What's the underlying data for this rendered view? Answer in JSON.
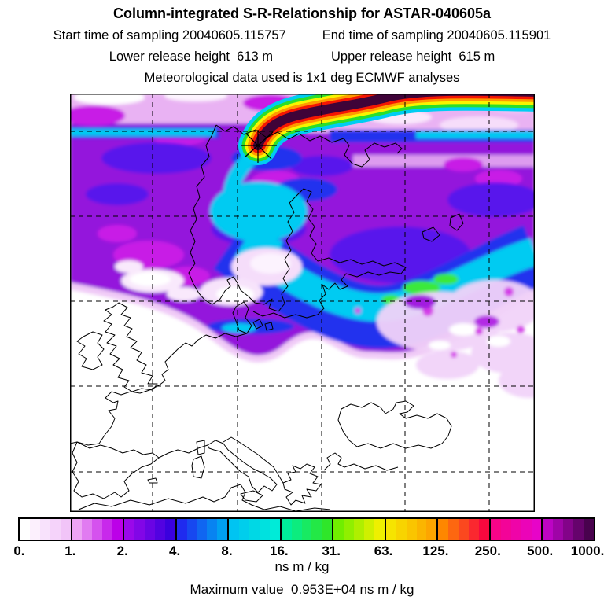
{
  "header": {
    "title": "Column-integrated S-R-Relationship for ASTAR-040605a",
    "sampling": {
      "start": "Start time of sampling 20040605.115757",
      "end": "End time of sampling 20040605.115901"
    },
    "release": {
      "lower": "Lower release height  613 m",
      "upper": "Upper release height  615 m"
    },
    "meteo": "Meteorological data used is 1x1 deg ECMWF analyses"
  },
  "colorbar": {
    "ticks": [
      "0.",
      "1.",
      "2.",
      "4.",
      "8.",
      "16.",
      "31.",
      "63.",
      "125.",
      "250.",
      "500.",
      "1000."
    ],
    "units": "ns m / kg",
    "segments": [
      [
        "#FFFFFF",
        "#F1C4F8"
      ],
      [
        "#EDA4F4",
        "#BC00E8"
      ],
      [
        "#9A08EA",
        "#3A00DE"
      ],
      [
        "#1F2BEF",
        "#00A0F2"
      ],
      [
        "#00C4F2",
        "#00EBD8"
      ],
      [
        "#00EE9A",
        "#2FE62A"
      ],
      [
        "#70EE00",
        "#EEF000"
      ],
      [
        "#F6E400",
        "#FDA500"
      ],
      [
        "#FE8700",
        "#F8083E"
      ],
      [
        "#F70488",
        "#E704C8"
      ],
      [
        "#BC04C4",
        "#49024E"
      ]
    ]
  },
  "footer": {
    "max_value": "Maximum value  0.953E+04 ns m / kg"
  },
  "chart_data": {
    "type": "heatmap",
    "title": "Column-integrated S-R-Relationship for ASTAR-040605a",
    "subtitle_lines": [
      "Start time of sampling 20040605.115757    End time of sampling 20040605.115901",
      "Lower release height  613 m    Upper release height  615 m",
      "Meteorological data used is 1x1 deg ECMWF analyses"
    ],
    "colorbar_levels": [
      0,
      1,
      2,
      4,
      8,
      16,
      31,
      63,
      125,
      250,
      500,
      1000
    ],
    "colorbar_tick_labels": [
      "0.",
      "1.",
      "2.",
      "4.",
      "8.",
      "16.",
      "31.",
      "63.",
      "125.",
      "250.",
      "500.",
      "1000."
    ],
    "units": "ns m / kg",
    "max_value": "0.953E+04",
    "max_value_units": "ns m / kg",
    "legend_position": "horizontal colorbar below map",
    "grid": "dashed black lat-lon graticule, ~107 px spacing, coastlines of Europe drawn in black",
    "region": "Europe and North Atlantic, Scandinavia to Mediterranean",
    "release_marker": {
      "symbol": "asterisk",
      "location": "high-Arctic Scandinavia / Kola region of map"
    },
    "features": [
      "narrow high-value plume (dark >1000 core with red-orange-yellow-green-cyan fringes) arcs from release asterisk toward upper-right corner",
      "broad purple/violet field (1-4 ns m / kg) covers upper half of map",
      "cyan bands (8-16 ns m / kg) curve from release point across Scandinavia and Baltic toward right edge, with small green cores",
      "pale pink speckled values over eastern Europe fading to white",
      "lower-left quadrant (Atlantic, W/S Europe) near zero, white"
    ]
  }
}
